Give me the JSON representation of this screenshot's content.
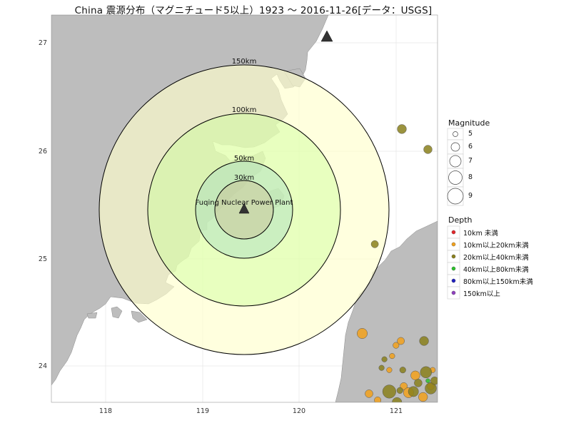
{
  "title": "China 震源分布（マグニチュード5以上）1923 〜 2016-11-26[データ：USGS]",
  "axes": {
    "lon_ticks": [
      "118",
      "119",
      "120",
      "121"
    ],
    "lat_ticks": [
      "27",
      "26",
      "25",
      "24"
    ]
  },
  "site": {
    "label": "Fuqing Nuclear Power Plant",
    "lon": 119.45,
    "lat": 25.45
  },
  "rings": [
    {
      "label": "150km",
      "radius_km": 150
    },
    {
      "label": "100km",
      "radius_km": 100
    },
    {
      "label": "50km",
      "radius_km": 50
    },
    {
      "label": "30km",
      "radius_km": 30
    }
  ],
  "legend": {
    "magnitude_title": "Magnitude",
    "magnitude_items": [
      {
        "label": "5"
      },
      {
        "label": "6"
      },
      {
        "label": "7"
      },
      {
        "label": "8"
      },
      {
        "label": "9"
      }
    ],
    "depth_title": "Depth",
    "depth_items": [
      {
        "label": "10km 未満",
        "color": "#e4262a"
      },
      {
        "label": "10km以上20km未満",
        "color": "#f2a11c"
      },
      {
        "label": "20km以上40km未満",
        "color": "#8a801c"
      },
      {
        "label": "40km以上80km未満",
        "color": "#2bc22b"
      },
      {
        "label": "80km以上150km未満",
        "color": "#2020c0"
      },
      {
        "label": "150km以上",
        "color": "#9040c0"
      }
    ]
  },
  "colors": {
    "land": "#bdbdbd",
    "sea": "#ffffff",
    "ring_outer": "#ffffdd",
    "ring_mid": "#ddf8c0",
    "ring_inner": "#cfe6cc",
    "ring_core": "#d6d6b8"
  },
  "other_site": {
    "lon": 120.27,
    "lat": 27.06
  },
  "chart_data": {
    "type": "scatter",
    "title": "China 震源分布（マグニチュード5以上）1923 〜 2016-11-26[データ：USGS]",
    "xlim": [
      117.45,
      121.45
    ],
    "ylim": [
      23.65,
      27.25
    ],
    "series": [
      {
        "name": "10km以上20km未満",
        "points": [
          {
            "x": 120.67,
            "y": 24.29,
            "mag": 6.0
          },
          {
            "x": 120.74,
            "y": 23.73,
            "mag": 5.6
          },
          {
            "x": 120.83,
            "y": 23.67,
            "mag": 5.4
          },
          {
            "x": 121.02,
            "y": 24.18,
            "mag": 5.3
          },
          {
            "x": 121.07,
            "y": 24.22,
            "mag": 5.5
          },
          {
            "x": 120.98,
            "y": 24.08,
            "mag": 5.2
          },
          {
            "x": 120.95,
            "y": 23.95,
            "mag": 5.2
          },
          {
            "x": 121.1,
            "y": 23.8,
            "mag": 5.5
          },
          {
            "x": 121.15,
            "y": 23.74,
            "mag": 6.0
          },
          {
            "x": 121.22,
            "y": 23.9,
            "mag": 5.8
          },
          {
            "x": 121.3,
            "y": 23.7,
            "mag": 5.8
          },
          {
            "x": 121.38,
            "y": 23.8,
            "mag": 5.5
          },
          {
            "x": 121.4,
            "y": 23.95,
            "mag": 5.2
          }
        ]
      },
      {
        "name": "20km以上40km未満",
        "points": [
          {
            "x": 121.08,
            "y": 26.19,
            "mag": 5.8
          },
          {
            "x": 121.35,
            "y": 26.0,
            "mag": 5.7
          },
          {
            "x": 120.8,
            "y": 25.12,
            "mag": 5.5
          },
          {
            "x": 121.31,
            "y": 24.22,
            "mag": 5.8
          },
          {
            "x": 120.95,
            "y": 23.75,
            "mag": 6.5
          },
          {
            "x": 121.03,
            "y": 23.65,
            "mag": 5.9
          },
          {
            "x": 121.09,
            "y": 23.95,
            "mag": 5.3
          },
          {
            "x": 120.87,
            "y": 23.97,
            "mag": 5.2
          },
          {
            "x": 120.9,
            "y": 24.05,
            "mag": 5.2
          },
          {
            "x": 121.06,
            "y": 23.76,
            "mag": 5.3
          },
          {
            "x": 121.2,
            "y": 23.75,
            "mag": 6.0
          },
          {
            "x": 121.25,
            "y": 23.83,
            "mag": 5.6
          },
          {
            "x": 121.33,
            "y": 23.93,
            "mag": 6.2
          },
          {
            "x": 121.38,
            "y": 23.78,
            "mag": 6.2
          },
          {
            "x": 121.42,
            "y": 23.85,
            "mag": 5.6
          }
        ]
      },
      {
        "name": "40km以上80km未満",
        "points": [
          {
            "x": 121.35,
            "y": 23.85,
            "mag": 5.0
          }
        ]
      }
    ]
  }
}
